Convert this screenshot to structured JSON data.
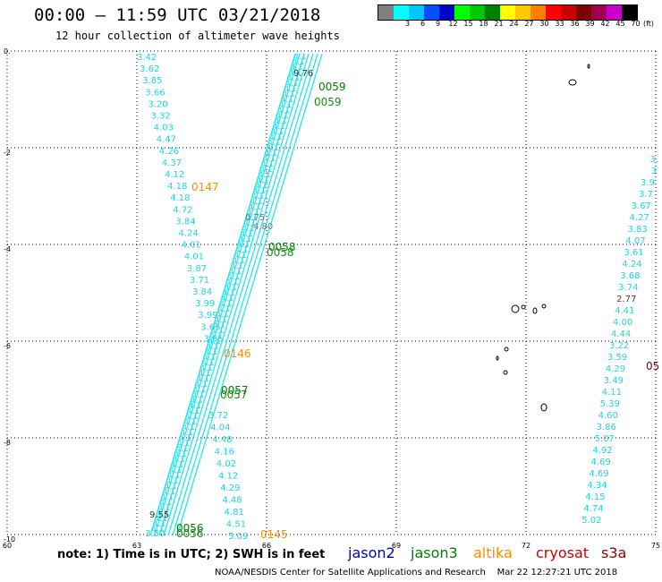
{
  "header": {
    "title": "00:00 – 11:59 UTC 03/21/2018",
    "subtitle": "12 hour collection of altimeter wave heights"
  },
  "colorbar": {
    "unit": "(ft)",
    "cells": [
      {
        "color": "#808080",
        "label": ""
      },
      {
        "color": "#00ffff",
        "label": "3"
      },
      {
        "color": "#00c8ff",
        "label": "6"
      },
      {
        "color": "#0050ff",
        "label": "9"
      },
      {
        "color": "#0000c8",
        "label": "12"
      },
      {
        "color": "#00ff00",
        "label": "15"
      },
      {
        "color": "#00c800",
        "label": "18"
      },
      {
        "color": "#008000",
        "label": "21"
      },
      {
        "color": "#ffff00",
        "label": "24"
      },
      {
        "color": "#ffc800",
        "label": "27"
      },
      {
        "color": "#ff8000",
        "label": "30"
      },
      {
        "color": "#ff0000",
        "label": "33"
      },
      {
        "color": "#c80000",
        "label": "36"
      },
      {
        "color": "#800000",
        "label": "39"
      },
      {
        "color": "#a00050",
        "label": "42"
      },
      {
        "color": "#c800c8",
        "label": "45"
      },
      {
        "color": "#000000",
        "label": "70"
      }
    ]
  },
  "axes": {
    "x_ticks": [
      "60",
      "63",
      "66",
      "69",
      "72",
      "75"
    ],
    "y_ticks": [
      "0.",
      "-2",
      "-4",
      "-6",
      "-8",
      "-10"
    ]
  },
  "track_labels": [
    {
      "text": "0147",
      "color": "#ff8c00"
    },
    {
      "text": "0146",
      "color": "#ff8c00"
    },
    {
      "text": "0145",
      "color": "#ff8c00"
    },
    {
      "text": "0059",
      "color": "#008000"
    },
    {
      "text": "0059",
      "color": "#1a8c1a"
    },
    {
      "text": "0058",
      "color": "#008000"
    },
    {
      "text": "0058",
      "color": "#1a8c1a"
    },
    {
      "text": "0057",
      "color": "#008000"
    },
    {
      "text": "0057",
      "color": "#1a8c1a"
    },
    {
      "text": "0056",
      "color": "#008000"
    },
    {
      "text": "0056",
      "color": "#1a8c1a"
    },
    {
      "text": "05",
      "color": "#8b0000"
    }
  ],
  "swh_left": [
    "3.42",
    "3.62",
    "3.85",
    "3.66",
    "3.20",
    "3.32",
    "4.03",
    "4.47",
    "4.26",
    "4.37",
    "4.12",
    "4.18",
    "4.18",
    "4.72",
    "3.84",
    "4.24",
    "4.01",
    "4.01",
    "3.87",
    "3.71",
    "3.84",
    "3.99",
    "3.99",
    "3.65",
    "3.85"
  ],
  "swh_left_bottom": [
    "3.72",
    "4.04",
    "4.48",
    "4.16",
    "4.02",
    "4.12",
    "4.29",
    "4.48",
    "4.81",
    "4.51",
    "5.09"
  ],
  "swh_right": [
    "3.",
    "3",
    "3.9",
    "3.7",
    "3.67",
    "4.27",
    "3.83",
    "4.07",
    "3.61",
    "4.24",
    "3.68",
    "3.74",
    "2.77",
    "4.41",
    "4.00",
    "4.44",
    "3.22",
    "3.59",
    "4.29",
    "3.49",
    "4.11",
    "5.39",
    "4.60",
    "3.86",
    "5.07",
    "4.92",
    "4.69",
    "4.69",
    "4.34",
    "4.15",
    "4.74",
    "5.02"
  ],
  "swh_misc": [
    "9.76",
    "9.55",
    "3.50",
    "0.75",
    "4.80"
  ],
  "note": "note: 1) Time is in UTC; 2) SWH is in feet",
  "satellites": [
    {
      "name": "jason2",
      "color": "#0000cc"
    },
    {
      "name": "jason3",
      "color": "#008000"
    },
    {
      "name": "altika",
      "color": "#ff8c00"
    },
    {
      "name": "cryosat",
      "color": "#cc0000"
    },
    {
      "name": "s3a",
      "color": "#8b0000"
    }
  ],
  "footer": "NOAA/NESDIS Center for Satellite Applications and Research    Mar 22 12:27:21 UTC 2018"
}
